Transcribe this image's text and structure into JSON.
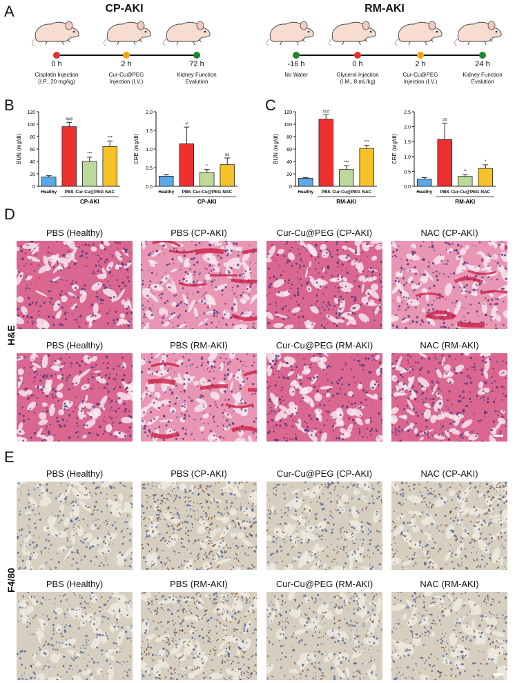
{
  "panels": {
    "A": "A",
    "B": "B",
    "C": "C",
    "D": "D",
    "E": "E"
  },
  "timeline_cp": {
    "title": "CP-AKI",
    "points": [
      {
        "time": "0 h",
        "label1": "Cisplatin Injection",
        "label2": "(I.P., 20 mg/kg)",
        "color": "#e0332b"
      },
      {
        "time": "2 h",
        "label1": "Cur-Cu@PEG",
        "label2": "Injection (I.V.)",
        "color": "#f5a20b"
      },
      {
        "time": "72 h",
        "label1": "Kidney Function",
        "label2": "Evalution",
        "color": "#1a8a2e"
      }
    ]
  },
  "timeline_rm": {
    "title": "RM-AKI",
    "points": [
      {
        "time": "-16 h",
        "label1": "No Water",
        "label2": "",
        "color": "#1a8a2e"
      },
      {
        "time": "0 h",
        "label1": "Glycerol Injection",
        "label2": "(I.M., 8 mL/kg)",
        "color": "#e0332b"
      },
      {
        "time": "2 h",
        "label1": "Cur-Cu@PEG",
        "label2": "Injection (I.V.)",
        "color": "#f5a20b"
      },
      {
        "time": "24 h",
        "label1": "Kidney Function",
        "label2": "Evalution",
        "color": "#1a8a2e"
      }
    ]
  },
  "chart_data": [
    {
      "type": "bar",
      "panel": "B",
      "ylabel": "BUN (mg/dl)",
      "ylim": [
        0,
        120
      ],
      "yticks": [
        0,
        20,
        40,
        60,
        80,
        100,
        120
      ],
      "categories": [
        "Healthy",
        "PBS",
        "Cur-Cu@PEG",
        "NAC"
      ],
      "group_label": "CP-AKI",
      "values": [
        15,
        96,
        40,
        64
      ],
      "errors": [
        2,
        7,
        7,
        9
      ],
      "sig": [
        "",
        "###",
        "***",
        "***"
      ]
    },
    {
      "type": "bar",
      "panel": "B",
      "ylabel": "CRE (mg/dl)",
      "ylim": [
        0,
        2.0
      ],
      "yticks": [
        0.0,
        0.5,
        1.0,
        1.5,
        2.0
      ],
      "categories": [
        "Healthy",
        "PBS",
        "Cur-Cu@PEG",
        "NAC"
      ],
      "group_label": "CP-AKI",
      "values": [
        0.27,
        1.14,
        0.37,
        0.58
      ],
      "errors": [
        0.05,
        0.45,
        0.08,
        0.18
      ],
      "sig": [
        "",
        "#",
        "*",
        "ns"
      ]
    },
    {
      "type": "bar",
      "panel": "C",
      "ylabel": "BUN (mg/dl)",
      "ylim": [
        0,
        120
      ],
      "yticks": [
        0,
        20,
        40,
        60,
        80,
        100,
        120
      ],
      "categories": [
        "Healthy",
        "PBS",
        "Cur-Cu@PEG",
        "NAC"
      ],
      "group_label": "RM-AKI",
      "values": [
        13,
        108,
        27,
        61
      ],
      "errors": [
        1,
        7,
        6,
        5
      ],
      "sig": [
        "",
        "###",
        "***",
        "***"
      ]
    },
    {
      "type": "bar",
      "panel": "C",
      "ylabel": "CRE (mg/dl)",
      "ylim": [
        0,
        2.5
      ],
      "yticks": [
        0.0,
        0.5,
        1.0,
        1.5,
        2.0,
        2.5
      ],
      "categories": [
        "Healthy",
        "PBS",
        "Cur-Cu@PEG",
        "NAC"
      ],
      "group_label": "RM-AKI",
      "values": [
        0.24,
        1.57,
        0.33,
        0.6
      ],
      "errors": [
        0.05,
        0.55,
        0.06,
        0.12
      ],
      "sig": [
        "",
        "##",
        "**",
        "*"
      ]
    }
  ],
  "bar_colors": [
    "#5aa9e6",
    "#ee3030",
    "#bcd99a",
    "#f6c22a"
  ],
  "he": {
    "row_label": "H&E",
    "row1": [
      "PBS (Healthy)",
      "PBS (CP-AKI)",
      "Cur-Cu@PEG (CP-AKI)",
      "NAC (CP-AKI)"
    ],
    "row2": [
      "PBS (Healthy)",
      "PBS (RM-AKI)",
      "Cur-Cu@PEG (RM-AKI)",
      "NAC (RM-AKI)"
    ]
  },
  "f480": {
    "row_label": "F4/80",
    "row1": [
      "PBS (Healthy)",
      "PBS (CP-AKI)",
      "Cur-Cu@PEG (CP-AKI)",
      "NAC (CP-AKI)"
    ],
    "row2": [
      "PBS (Healthy)",
      "PBS (RM-AKI)",
      "Cur-Cu@PEG (RM-AKI)",
      "NAC (RM-AKI)"
    ]
  }
}
